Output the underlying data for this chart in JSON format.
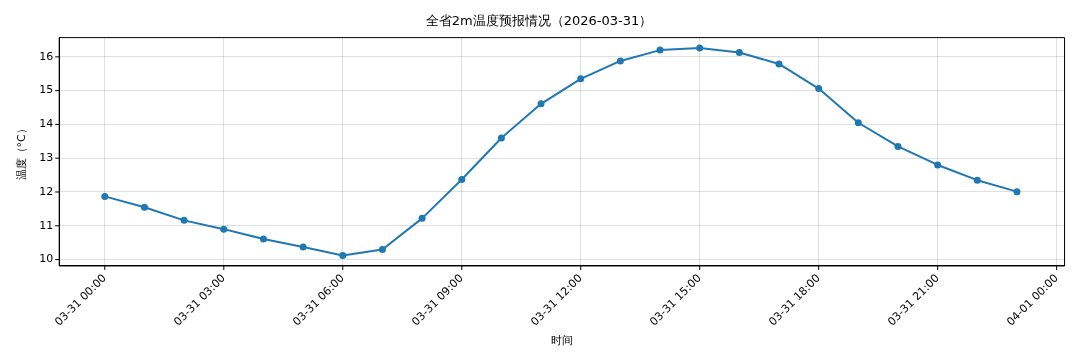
{
  "chart_data": {
    "type": "line",
    "title": "全省2m温度预报情况（2026-03-31）",
    "xlabel": "时间",
    "ylabel": "温度（°C）",
    "x": [
      "2026-03-31T00:00",
      "2026-03-31T01:00",
      "2026-03-31T02:00",
      "2026-03-31T03:00",
      "2026-03-31T04:00",
      "2026-03-31T05:00",
      "2026-03-31T06:00",
      "2026-03-31T07:00",
      "2026-03-31T08:00",
      "2026-03-31T09:00",
      "2026-03-31T10:00",
      "2026-03-31T11:00",
      "2026-03-31T12:00",
      "2026-03-31T13:00",
      "2026-03-31T14:00",
      "2026-03-31T15:00",
      "2026-03-31T16:00",
      "2026-03-31T17:00",
      "2026-03-31T18:00",
      "2026-03-31T19:00",
      "2026-03-31T20:00",
      "2026-03-31T21:00",
      "2026-03-31T22:00",
      "2026-03-31T23:00"
    ],
    "series": [
      {
        "color": "#1f77b4",
        "values": [
          11.87,
          11.55,
          11.16,
          10.9,
          10.61,
          10.37,
          10.12,
          10.3,
          11.22,
          12.37,
          13.6,
          14.61,
          15.35,
          15.88,
          16.2,
          16.26,
          16.13,
          15.79,
          15.06,
          14.05,
          13.35,
          12.8,
          12.35,
          12.01
        ]
      }
    ],
    "xlim": [
      "2026-03-30T22:51",
      "2026-04-01T00:12"
    ],
    "xticks": [
      {
        "value": "2026-03-31T00:00",
        "label": "03-31 00:00"
      },
      {
        "value": "2026-03-31T03:00",
        "label": "03-31 03:00"
      },
      {
        "value": "2026-03-31T06:00",
        "label": "03-31 06:00"
      },
      {
        "value": "2026-03-31T09:00",
        "label": "03-31 09:00"
      },
      {
        "value": "2026-03-31T12:00",
        "label": "03-31 12:00"
      },
      {
        "value": "2026-03-31T15:00",
        "label": "03-31 15:00"
      },
      {
        "value": "2026-03-31T18:00",
        "label": "03-31 18:00"
      },
      {
        "value": "2026-03-31T21:00",
        "label": "03-31 21:00"
      },
      {
        "value": "2026-04-01T00:00",
        "label": "04-01 00:00"
      }
    ],
    "ylim": [
      9.81,
      16.57
    ],
    "yticks": [
      10,
      11,
      12,
      13,
      14,
      15,
      16
    ],
    "grid": true,
    "marker": "circle",
    "line_style": "solid"
  }
}
